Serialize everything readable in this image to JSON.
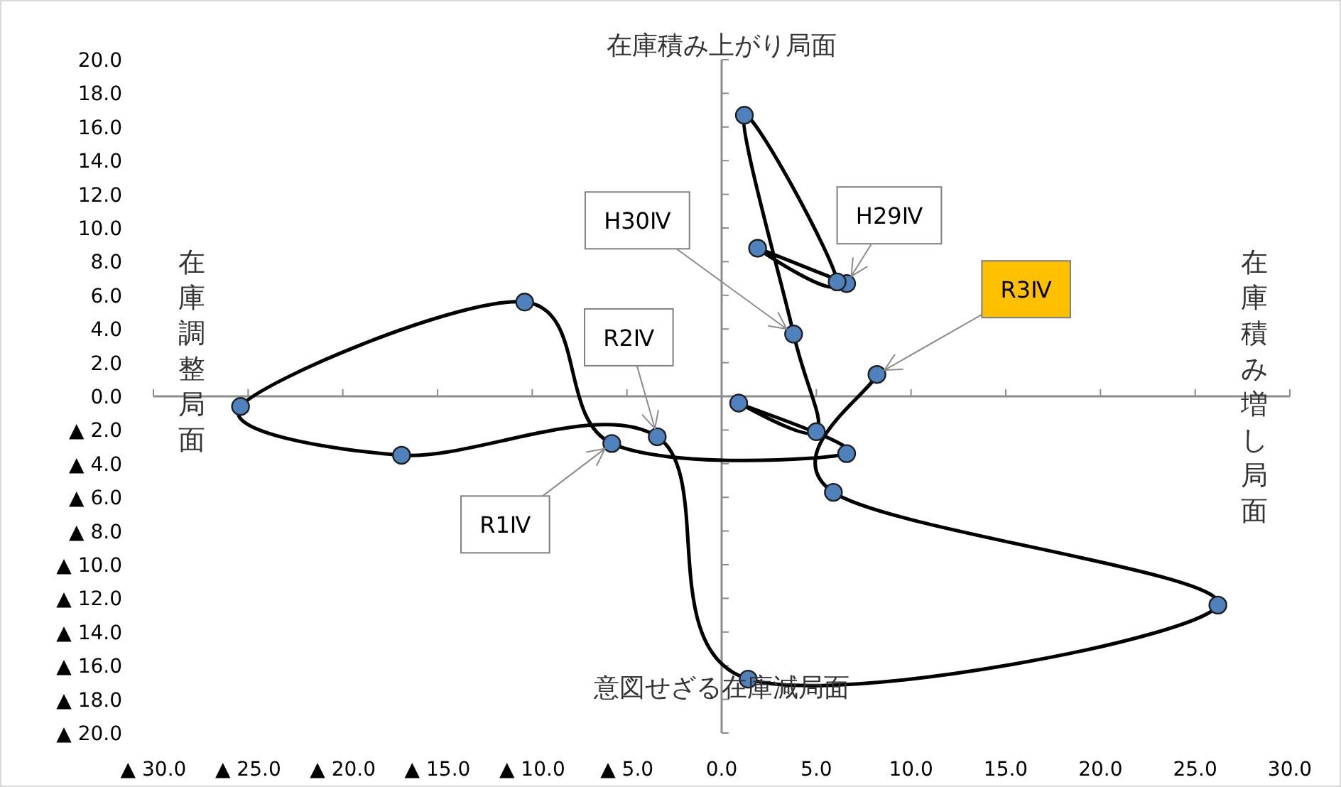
{
  "chart_data": {
    "type": "line",
    "xlim": [
      -30,
      30
    ],
    "ylim": [
      -20,
      20
    ],
    "xticks": [
      {
        "value": -30,
        "label": "▲ 30.0"
      },
      {
        "value": -25,
        "label": "▲ 25.0"
      },
      {
        "value": -20,
        "label": "▲ 20.0"
      },
      {
        "value": -15,
        "label": "▲ 15.0"
      },
      {
        "value": -10,
        "label": "▲ 10.0"
      },
      {
        "value": -5,
        "label": "▲ 5.0"
      },
      {
        "value": 0,
        "label": "0.0"
      },
      {
        "value": 5,
        "label": "5.0"
      },
      {
        "value": 10,
        "label": "10.0"
      },
      {
        "value": 15,
        "label": "15.0"
      },
      {
        "value": 20,
        "label": "20.0"
      },
      {
        "value": 25,
        "label": "25.0"
      },
      {
        "value": 30,
        "label": "30.0"
      }
    ],
    "yticks": [
      {
        "value": 20,
        "label": "20.0"
      },
      {
        "value": 18,
        "label": "18.0"
      },
      {
        "value": 16,
        "label": "16.0"
      },
      {
        "value": 14,
        "label": "14.0"
      },
      {
        "value": 12,
        "label": "12.0"
      },
      {
        "value": 10,
        "label": "10.0"
      },
      {
        "value": 8,
        "label": "8.0"
      },
      {
        "value": 6,
        "label": "6.0"
      },
      {
        "value": 4,
        "label": "4.0"
      },
      {
        "value": 2,
        "label": "2.0"
      },
      {
        "value": 0,
        "label": "0.0"
      },
      {
        "value": -2,
        "label": "▲ 2.0"
      },
      {
        "value": -4,
        "label": "▲ 4.0"
      },
      {
        "value": -6,
        "label": "▲ 6.0"
      },
      {
        "value": -8,
        "label": "▲ 8.0"
      },
      {
        "value": -10,
        "label": "▲ 10.0"
      },
      {
        "value": -12,
        "label": "▲ 12.0"
      },
      {
        "value": -14,
        "label": "▲ 14.0"
      },
      {
        "value": -16,
        "label": "▲ 16.0"
      },
      {
        "value": -18,
        "label": "▲ 18.0"
      },
      {
        "value": -20,
        "label": "▲ 20.0"
      }
    ],
    "series": [
      {
        "type": "line",
        "color": "#000000",
        "marker": "none",
        "x": [
          6.6,
          1.9,
          6.1,
          1.2,
          3.8,
          5.0,
          0.9,
          6.6,
          -5.8,
          -10.4,
          -25.4,
          -16.9,
          -3.4,
          1.4,
          26.2,
          5.9,
          8.2
        ],
        "values": [
          6.7,
          8.8,
          6.8,
          16.7,
          3.7,
          -2.1,
          -0.4,
          -3.4,
          -2.8,
          5.6,
          -0.6,
          -3.5,
          -2.4,
          -16.8,
          -12.4,
          -5.7,
          1.3
        ]
      },
      {
        "type": "scatter",
        "color": "#4f81bd",
        "marker": "circle",
        "x": [
          6.6,
          1.9,
          6.1,
          1.2,
          3.8,
          5.0,
          0.9,
          6.6,
          -5.8,
          -10.4,
          -25.4,
          -16.9,
          -3.4,
          1.4,
          26.2,
          5.9,
          8.2
        ],
        "values": [
          6.7,
          8.8,
          6.8,
          16.7,
          3.7,
          -2.1,
          -0.4,
          -3.4,
          -2.8,
          5.6,
          -0.6,
          -3.5,
          -2.4,
          -16.8,
          -12.4,
          -5.7,
          1.3
        ]
      }
    ],
    "annotations": [
      "在庫積み上がり局面",
      "在庫積み増し局面",
      "意図せざる在庫減局面",
      "在庫調整局面",
      {
        "text": "H29Ⅳ",
        "x": 6.6,
        "y": 6.7
      },
      {
        "text": "H30Ⅳ",
        "x": 3.8,
        "y": 3.7
      },
      {
        "text": "R1Ⅳ",
        "x": -5.8,
        "y": -2.8
      },
      {
        "text": "R2Ⅳ",
        "x": -3.4,
        "y": -2.4
      },
      {
        "text": "R3Ⅳ",
        "x": 8.2,
        "y": 1.3
      }
    ]
  }
}
